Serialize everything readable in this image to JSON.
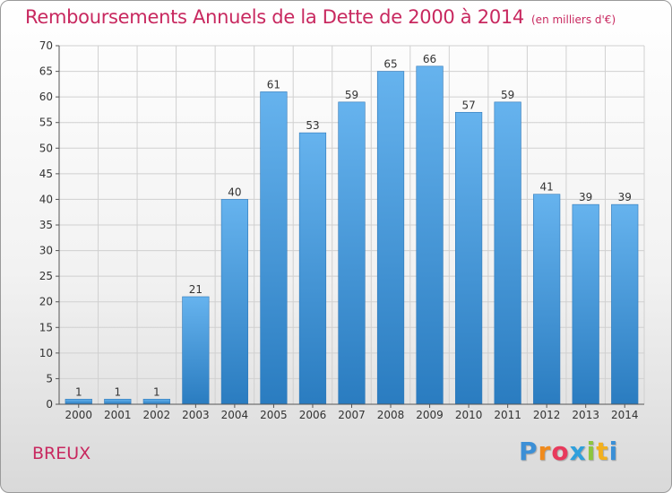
{
  "header": {
    "title": "Remboursements Annuels de la Dette de 2000 à 2014",
    "unit": "(en milliers d'€)"
  },
  "footer": {
    "commune": "BREUX",
    "logo": "Proxiti"
  },
  "colors": {
    "accent": "#c8285f",
    "bar_top": "#66b3ee",
    "bar_bottom": "#2a7cc0",
    "grid": "#d0d0d0"
  },
  "chart_data": {
    "type": "bar",
    "title": "Remboursements Annuels de la Dette de 2000 à 2014",
    "subtitle": "(en milliers d'€)",
    "xlabel": "",
    "ylabel": "",
    "categories": [
      "2000",
      "2001",
      "2002",
      "2003",
      "2004",
      "2005",
      "2006",
      "2007",
      "2008",
      "2009",
      "2010",
      "2011",
      "2012",
      "2013",
      "2014"
    ],
    "values": [
      1,
      1,
      1,
      21,
      40,
      61,
      53,
      59,
      65,
      66,
      57,
      59,
      41,
      39,
      39
    ],
    "ylim": [
      0,
      70
    ],
    "yticks": [
      0,
      5,
      10,
      15,
      20,
      25,
      30,
      35,
      40,
      45,
      50,
      55,
      60,
      65,
      70
    ],
    "grid": true,
    "data_labels": true,
    "legend": "none"
  }
}
